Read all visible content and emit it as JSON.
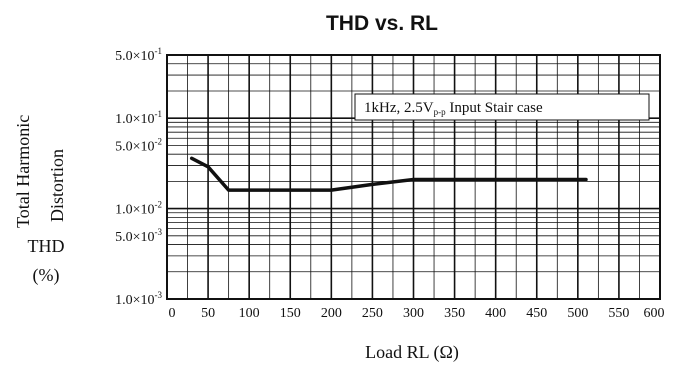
{
  "chart_data": {
    "type": "line",
    "title": "THD vs. RL",
    "xlabel": "Load RL (Ω)",
    "ylabel_lines": [
      "Total Harmonic",
      "Distortion",
      "THD",
      "(%)"
    ],
    "y_scale": "log",
    "grid": true,
    "xlim": [
      0,
      600
    ],
    "ylim": [
      0.001,
      0.5
    ],
    "x_ticks": [
      "0",
      "50",
      "100",
      "150",
      "200",
      "250",
      "300",
      "350",
      "400",
      "450",
      "500",
      "550",
      "600"
    ],
    "y_ticks": [
      {
        "value": 0.5,
        "mantissa": "5.0",
        "exponent": "-1"
      },
      {
        "value": 0.1,
        "mantissa": "1.0",
        "exponent": "-1"
      },
      {
        "value": 0.05,
        "mantissa": "5.0",
        "exponent": "-2"
      },
      {
        "value": 0.01,
        "mantissa": "1.0",
        "exponent": "-2"
      },
      {
        "value": 0.005,
        "mantissa": "5.0",
        "exponent": "-3"
      },
      {
        "value": 0.001,
        "mantissa": "1.0",
        "exponent": "-3"
      }
    ],
    "annotation": {
      "text": "1kHz, 2.5V",
      "sub": "p-p",
      "rest": " Input Stair case"
    },
    "series": [
      {
        "x": [
          30,
          50,
          75,
          100,
          150,
          200,
          250,
          300,
          350,
          400,
          450,
          500,
          510
        ],
        "y": [
          0.036,
          0.029,
          0.016,
          0.016,
          0.016,
          0.016,
          0.0185,
          0.021,
          0.021,
          0.021,
          0.021,
          0.021,
          0.021
        ]
      }
    ]
  }
}
